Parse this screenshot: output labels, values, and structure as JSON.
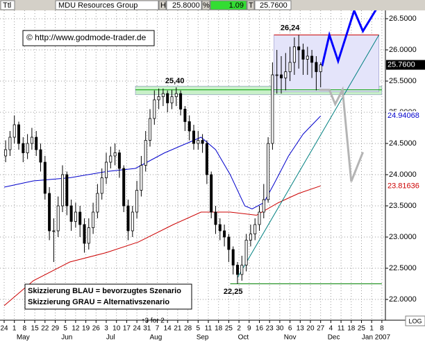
{
  "header": {
    "symbol": "Ttl",
    "name": "MDU Resources Group",
    "high_label": "H",
    "high": "25.8000",
    "pct_label": "%",
    "change": "1.09",
    "last_label": "T",
    "last": "25.7600"
  },
  "copyright": "© http://www.godmode-trader.de",
  "legend_lines": [
    "Skizzierung BLAU = bevorzugtes Szenario",
    "Skizzierung GRAU = Alternativszenario"
  ],
  "scale_button": "LOG",
  "chart_data": {
    "type": "candlestick",
    "x": [
      1,
      4,
      7,
      10,
      13,
      16,
      19,
      22,
      25,
      28,
      31,
      34,
      37,
      40,
      43,
      46,
      49,
      52,
      55,
      58,
      61,
      64,
      67,
      70,
      73,
      76,
      79,
      82,
      85,
      88,
      91,
      94,
      97,
      100,
      103,
      106,
      109,
      112,
      115,
      118,
      121,
      124,
      127,
      130,
      133,
      136,
      139,
      142,
      145,
      148,
      151,
      154,
      157,
      160,
      163,
      166,
      169,
      172,
      175,
      178,
      181,
      184,
      187,
      190,
      193,
      196,
      199,
      202,
      205,
      208,
      211,
      214,
      217
    ],
    "open": [
      24.3,
      24.4,
      24.6,
      24.8,
      24.5,
      24.35,
      24.5,
      24.6,
      24.4,
      24.2,
      23.7,
      23.1,
      23.1,
      23.5,
      24.0,
      23.5,
      23.25,
      23.4,
      23.2,
      22.9,
      23.15,
      23.4,
      23.7,
      23.95,
      24.2,
      24.3,
      24.35,
      24.1,
      23.5,
      23.1,
      23.4,
      23.75,
      24.15,
      24.55,
      24.9,
      25.2,
      25.25,
      25.3,
      25.15,
      25.25,
      25.3,
      25.05,
      24.85,
      24.7,
      24.5,
      24.55,
      24.5,
      24.0,
      23.4,
      23.2,
      23.1,
      23.0,
      22.8,
      22.55,
      22.4,
      22.55,
      22.95,
      23.05,
      23.2,
      23.4,
      23.6,
      24.5,
      25.6,
      25.6,
      25.55,
      25.65,
      25.8,
      26.05,
      26.0,
      25.85,
      25.9,
      25.8,
      25.65
    ],
    "high": [
      24.55,
      24.7,
      24.95,
      24.85,
      24.6,
      24.65,
      24.75,
      24.7,
      24.5,
      24.3,
      23.8,
      23.3,
      23.65,
      24.15,
      24.05,
      23.6,
      23.55,
      23.5,
      23.3,
      23.3,
      23.55,
      23.85,
      24.1,
      24.35,
      24.45,
      24.5,
      24.4,
      24.15,
      23.6,
      23.5,
      23.9,
      24.3,
      24.7,
      25.05,
      25.35,
      25.38,
      25.38,
      25.35,
      25.36,
      25.4,
      25.35,
      25.1,
      24.95,
      24.8,
      24.7,
      24.65,
      24.55,
      24.05,
      23.5,
      23.3,
      23.2,
      23.05,
      22.85,
      22.6,
      22.7,
      23.05,
      23.2,
      23.3,
      23.5,
      23.85,
      24.6,
      25.8,
      26.0,
      25.9,
      25.95,
      26.05,
      26.2,
      26.24,
      26.1,
      26.05,
      26.0,
      25.9,
      25.8
    ],
    "low": [
      24.2,
      24.3,
      24.5,
      24.4,
      24.2,
      24.25,
      24.4,
      24.3,
      24.05,
      23.6,
      22.95,
      22.6,
      23.0,
      23.4,
      23.35,
      23.1,
      23.15,
      23.0,
      22.75,
      22.8,
      23.05,
      23.3,
      23.6,
      23.85,
      24.1,
      24.15,
      23.95,
      23.4,
      22.95,
      23.0,
      23.3,
      23.65,
      24.05,
      24.45,
      24.8,
      25.05,
      25.1,
      25.0,
      25.05,
      25.1,
      24.95,
      24.7,
      24.55,
      24.4,
      24.4,
      24.35,
      23.85,
      23.3,
      23.05,
      22.95,
      22.85,
      22.6,
      22.4,
      22.25,
      22.3,
      22.45,
      22.85,
      22.95,
      23.1,
      23.3,
      23.55,
      24.4,
      25.3,
      25.3,
      25.35,
      25.5,
      25.6,
      25.7,
      25.6,
      25.6,
      25.55,
      25.35,
      25.4
    ],
    "close": [
      24.4,
      24.6,
      24.8,
      24.5,
      24.35,
      24.5,
      24.6,
      24.4,
      24.2,
      23.7,
      23.1,
      23.1,
      23.5,
      24.0,
      23.5,
      23.25,
      23.4,
      23.2,
      22.9,
      23.15,
      23.4,
      23.7,
      23.95,
      24.2,
      24.3,
      24.35,
      24.1,
      23.5,
      23.1,
      23.4,
      23.75,
      24.15,
      24.55,
      24.9,
      25.2,
      25.25,
      25.3,
      25.15,
      25.25,
      25.3,
      25.05,
      24.85,
      24.7,
      24.5,
      24.55,
      24.5,
      24.0,
      23.4,
      23.2,
      23.1,
      23.0,
      22.8,
      22.55,
      22.4,
      22.55,
      22.95,
      23.05,
      23.2,
      23.4,
      23.6,
      24.5,
      25.6,
      25.6,
      25.55,
      25.65,
      25.8,
      26.05,
      26.0,
      25.85,
      25.9,
      25.8,
      25.65,
      25.76
    ],
    "up_color": "#ffffff",
    "down_color": "#000000",
    "edge_color": "#000000",
    "xlim": [
      -2.86,
      261.43
    ],
    "ylim": [
      21.667,
      26.633
    ],
    "yticks": [
      {
        "value": 22,
        "label": "22.0000"
      },
      {
        "value": 22.5,
        "label": "22.5000"
      },
      {
        "value": 23,
        "label": "23.0000"
      },
      {
        "value": 23.5,
        "label": "23.5000"
      },
      {
        "value": 24,
        "label": "24.0000"
      },
      {
        "value": 24.5,
        "label": "24.5000"
      },
      {
        "value": 25,
        "label": "25.0000"
      },
      {
        "value": 25.5,
        "label": "25.5000"
      },
      {
        "value": 26,
        "label": "26.0000"
      },
      {
        "value": 26.5,
        "label": "26.5000"
      }
    ],
    "xticks": [
      {
        "value": 0,
        "label": "24"
      },
      {
        "value": 7,
        "label": "1"
      },
      {
        "value": 14,
        "label": "8"
      },
      {
        "value": 21,
        "label": "15"
      },
      {
        "value": 28,
        "label": "22"
      },
      {
        "value": 35,
        "label": "29"
      },
      {
        "value": 42,
        "label": "5"
      },
      {
        "value": 49,
        "label": "12"
      },
      {
        "value": 56,
        "label": "19"
      },
      {
        "value": 63,
        "label": "26"
      },
      {
        "value": 70,
        "label": "3"
      },
      {
        "value": 77,
        "label": "10"
      },
      {
        "value": 84,
        "label": "17"
      },
      {
        "value": 91,
        "label": "24"
      },
      {
        "value": 98,
        "label": "31"
      },
      {
        "value": 105,
        "label": "7"
      },
      {
        "value": 112,
        "label": "14"
      },
      {
        "value": 119,
        "label": "21"
      },
      {
        "value": 126,
        "label": "28"
      },
      {
        "value": 133,
        "label": "5"
      },
      {
        "value": 140,
        "label": "11"
      },
      {
        "value": 147,
        "label": "18"
      },
      {
        "value": 154,
        "label": "25"
      },
      {
        "value": 161,
        "label": "2"
      },
      {
        "value": 168,
        "label": "9"
      },
      {
        "value": 175,
        "label": "16"
      },
      {
        "value": 182,
        "label": "23"
      },
      {
        "value": 189,
        "label": "30"
      },
      {
        "value": 196,
        "label": "6"
      },
      {
        "value": 203,
        "label": "13"
      },
      {
        "value": 210,
        "label": "20"
      },
      {
        "value": 217,
        "label": "27"
      },
      {
        "value": 224,
        "label": "4"
      },
      {
        "value": 231,
        "label": "11"
      },
      {
        "value": 238,
        "label": "18"
      },
      {
        "value": 245,
        "label": "25"
      },
      {
        "value": 252,
        "label": "1"
      },
      {
        "value": 259,
        "label": "8"
      }
    ],
    "month_labels": [
      {
        "value": 13,
        "label": "May"
      },
      {
        "value": 43,
        "label": "Jun"
      },
      {
        "value": 73,
        "label": "Jul"
      },
      {
        "value": 104,
        "label": "Aug"
      },
      {
        "value": 136,
        "label": "Sep"
      },
      {
        "value": 164,
        "label": "Oct"
      },
      {
        "value": 196,
        "label": "Nov"
      },
      {
        "value": 226,
        "label": "Dec"
      },
      {
        "value": 255,
        "label": "Jan 2007"
      }
    ],
    "grid": true,
    "zones": [
      {
        "color": "#c8f0c8",
        "x": [
          90,
          259
        ],
        "values": [
          25.28,
          25.42
        ]
      },
      {
        "color": "#e4e4fa",
        "x": [
          185,
          257
        ],
        "values": [
          25.33,
          26.24
        ]
      }
    ],
    "lines": [
      {
        "color": "#0000cc",
        "width": 1,
        "x": [
          0,
          20,
          45,
          70,
          90,
          110,
          125,
          135,
          145,
          155,
          165,
          170,
          178,
          185,
          195,
          205,
          217
        ],
        "values": [
          23.8,
          23.9,
          23.95,
          24.05,
          24.1,
          24.35,
          24.5,
          24.6,
          24.4,
          24.0,
          23.5,
          23.45,
          23.55,
          23.85,
          24.3,
          24.65,
          24.94
        ]
      },
      {
        "color": "#cc0000",
        "width": 1,
        "x": [
          0,
          20,
          45,
          70,
          92,
          116,
          135,
          155,
          173,
          188,
          202,
          217
        ],
        "values": [
          21.9,
          22.3,
          22.6,
          22.75,
          22.92,
          23.2,
          23.4,
          23.4,
          23.35,
          23.55,
          23.7,
          23.82
        ]
      },
      {
        "color": "#00a000",
        "width": 1,
        "x": [
          90,
          259
        ],
        "values": [
          25.36,
          25.36
        ]
      },
      {
        "color": "#cc0000",
        "width": 1,
        "x": [
          185,
          257
        ],
        "values": [
          26.24,
          26.24
        ]
      },
      {
        "color": "#008080",
        "width": 1,
        "x": [
          160,
          257
        ],
        "values": [
          22.35,
          26.24
        ]
      },
      {
        "color": "#008000",
        "width": 1,
        "x": [
          155,
          259
        ],
        "values": [
          22.25,
          22.25
        ]
      },
      {
        "color": "#0000ff",
        "width": 3,
        "x": [
          218,
          223,
          229,
          240,
          246,
          259
        ],
        "values": [
          25.74,
          26.24,
          25.82,
          26.63,
          26.3,
          26.8
        ]
      },
      {
        "color": "#b4b4b4",
        "width": 3,
        "x": [
          216,
          223,
          227,
          232,
          238,
          246
        ],
        "values": [
          25.36,
          25.36,
          25.13,
          25.36,
          23.89,
          24.36
        ]
      }
    ],
    "annotations": [
      {
        "text": "26,24",
        "x": 196,
        "y": 26.35
      },
      {
        "text": "25,40",
        "x": 117,
        "y": 25.5
      },
      {
        "text": "22,25",
        "x": 157,
        "y": 22.12
      }
    ],
    "price_labels": [
      {
        "value": 25.76,
        "label": "25.7600",
        "color": "#ffffff",
        "background": "#000000"
      },
      {
        "value": 24.94068,
        "label": "24.94068",
        "color": "#0000cc",
        "background": "#ffffff"
      },
      {
        "value": 23.81636,
        "label": "23.81636",
        "color": "#cc0000",
        "background": "#ffffff"
      }
    ],
    "split_marker": {
      "x": 102,
      "label": "↑3 for 2"
    }
  }
}
